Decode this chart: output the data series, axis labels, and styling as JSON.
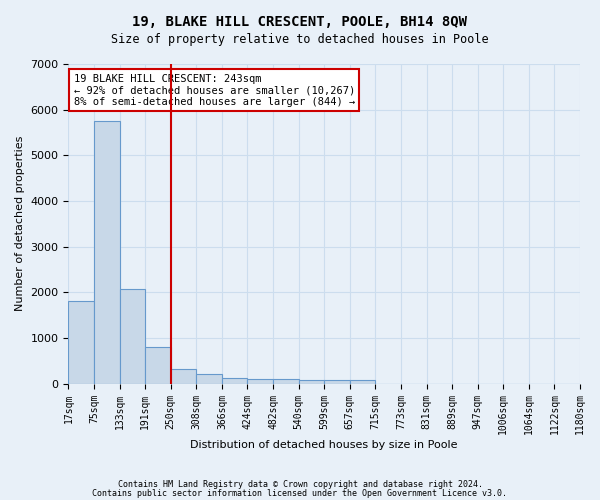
{
  "title": "19, BLAKE HILL CRESCENT, POOLE, BH14 8QW",
  "subtitle": "Size of property relative to detached houses in Poole",
  "xlabel": "Distribution of detached houses by size in Poole",
  "ylabel": "Number of detached properties",
  "bin_labels": [
    "17sqm",
    "75sqm",
    "133sqm",
    "191sqm",
    "250sqm",
    "308sqm",
    "366sqm",
    "424sqm",
    "482sqm",
    "540sqm",
    "599sqm",
    "657sqm",
    "715sqm",
    "773sqm",
    "831sqm",
    "889sqm",
    "947sqm",
    "1006sqm",
    "1064sqm",
    "1122sqm",
    "1180sqm"
  ],
  "bar_values": [
    1800,
    5750,
    2075,
    800,
    325,
    200,
    125,
    100,
    100,
    75,
    75,
    75,
    0,
    0,
    0,
    0,
    0,
    0,
    0,
    0
  ],
  "bar_color": "#c8d8e8",
  "bar_edge_color": "#6699cc",
  "property_line_x": 4.0,
  "property_line_color": "#cc0000",
  "annotation_text": "19 BLAKE HILL CRESCENT: 243sqm\n← 92% of detached houses are smaller (10,267)\n8% of semi-detached houses are larger (844) →",
  "annotation_box_color": "#ffffff",
  "annotation_box_edge_color": "#cc0000",
  "ylim": [
    0,
    7000
  ],
  "yticks": [
    0,
    1000,
    2000,
    3000,
    4000,
    5000,
    6000,
    7000
  ],
  "grid_color": "#ccddee",
  "background_color": "#e8f0f8",
  "footer_line1": "Contains HM Land Registry data © Crown copyright and database right 2024.",
  "footer_line2": "Contains public sector information licensed under the Open Government Licence v3.0."
}
